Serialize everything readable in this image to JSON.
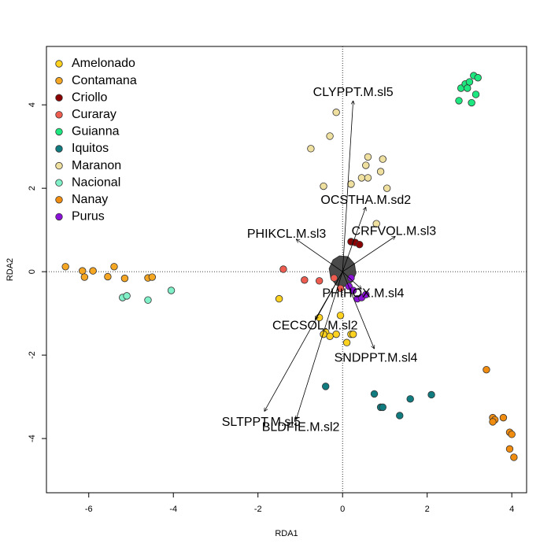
{
  "chart_data": {
    "type": "scatter",
    "xlabel": "RDA1",
    "ylabel": "RDA2",
    "xlim": [
      -7.0,
      4.35
    ],
    "ylim": [
      -5.3,
      5.4
    ],
    "xticks": [
      -6,
      -4,
      -2,
      0,
      2,
      4
    ],
    "yticks": [
      -4,
      -2,
      0,
      2,
      4
    ],
    "grid": false,
    "reference_lines": {
      "x": 0,
      "y": 0,
      "style": "dotted"
    },
    "legend_placement": "top-left",
    "series": [
      {
        "name": "Amelonado",
        "color": "#FFD21F",
        "x": [
          -1.5,
          -0.4,
          -0.3,
          -0.55,
          -0.45,
          -0.15,
          0.2,
          0.25,
          0.1,
          -0.05
        ],
        "y": [
          -0.65,
          -1.45,
          -1.55,
          -1.1,
          -1.5,
          -1.5,
          -1.5,
          -1.5,
          -1.7,
          -1.05
        ]
      },
      {
        "name": "Contamana",
        "color": "#F5A623",
        "x": [
          -6.55,
          -6.15,
          -6.1,
          -5.9,
          -5.55,
          -5.4,
          -5.15,
          -4.6,
          -4.5
        ],
        "y": [
          0.12,
          0.02,
          -0.13,
          0.02,
          -0.12,
          0.12,
          -0.16,
          -0.15,
          -0.13
        ]
      },
      {
        "name": "Criollo",
        "color": "#8B0000",
        "x": [
          0.2,
          0.3,
          0.4
        ],
        "y": [
          0.72,
          0.7,
          0.65
        ]
      },
      {
        "name": "Curaray",
        "color": "#EE5C50",
        "x": [
          -1.4,
          -0.9,
          -0.55,
          -0.05,
          -0.2
        ],
        "y": [
          0.06,
          -0.2,
          -0.22,
          -0.4,
          -0.15
        ]
      },
      {
        "name": "Guianna",
        "color": "#1DE87F",
        "x": [
          2.8,
          2.9,
          3.0,
          3.1,
          3.2,
          3.15,
          3.05,
          2.95,
          2.75
        ],
        "y": [
          4.4,
          4.5,
          4.55,
          4.7,
          4.65,
          4.25,
          4.05,
          4.4,
          4.1
        ]
      },
      {
        "name": "Iquitos",
        "color": "#107C80",
        "x": [
          -0.4,
          0.75,
          0.9,
          0.95,
          1.35,
          1.6,
          2.1
        ],
        "y": [
          -2.75,
          -2.93,
          -3.25,
          -3.25,
          -3.45,
          -3.05,
          -2.95
        ]
      },
      {
        "name": "Maranon",
        "color": "#F0E0A0",
        "x": [
          -0.15,
          -0.75,
          -0.3,
          0.6,
          0.95,
          0.55,
          0.9,
          0.45,
          0.6,
          1.05,
          0.2,
          -0.45,
          0.8
        ],
        "y": [
          3.82,
          2.95,
          3.25,
          2.75,
          2.7,
          2.55,
          2.4,
          2.25,
          2.25,
          2.0,
          2.1,
          2.05,
          1.15
        ]
      },
      {
        "name": "Nacional",
        "color": "#80F0C8",
        "x": [
          -5.2,
          -5.1,
          -4.6,
          -4.05
        ],
        "y": [
          -0.62,
          -0.58,
          -0.68,
          -0.45
        ]
      },
      {
        "name": "Nanay",
        "color": "#F08C10",
        "x": [
          3.4,
          3.55,
          3.6,
          3.8,
          3.95,
          4.0,
          3.95,
          4.05,
          3.55
        ],
        "y": [
          -2.35,
          -3.5,
          -3.55,
          -3.5,
          -3.85,
          -3.9,
          -4.25,
          -4.45,
          -3.6
        ]
      },
      {
        "name": "Purus",
        "color": "#8B10D8",
        "x": [
          0.2,
          0.15,
          0.25,
          0.35,
          0.45,
          0.55
        ],
        "y": [
          -0.15,
          -0.35,
          -0.45,
          -0.65,
          -0.62,
          -0.55
        ]
      }
    ],
    "biplot_arrows": [
      {
        "label": "CLYPPT.M.sl5",
        "x": 0.25,
        "y": 4.1
      },
      {
        "label": "OCSTHA.M.sd2",
        "x": 0.55,
        "y": 1.55
      },
      {
        "label": "CRFVOL.M.sl3",
        "x": 1.25,
        "y": 0.85
      },
      {
        "label": "PHIKCL.M.sl3",
        "x": -1.1,
        "y": 0.78
      },
      {
        "label": "PHIHOX.M.sl4",
        "x": 0.45,
        "y": -0.42
      },
      {
        "label": "CECSOL.M.sl2",
        "x": -0.65,
        "y": -1.15
      },
      {
        "label": "SNDPPT.M.sl4",
        "x": 0.75,
        "y": -1.85
      },
      {
        "label": "SLTPPT.M.sl5",
        "x": -1.85,
        "y": -3.35
      },
      {
        "label": "BLDFIE.M.sl2",
        "x": -1.1,
        "y": -3.55
      }
    ]
  }
}
